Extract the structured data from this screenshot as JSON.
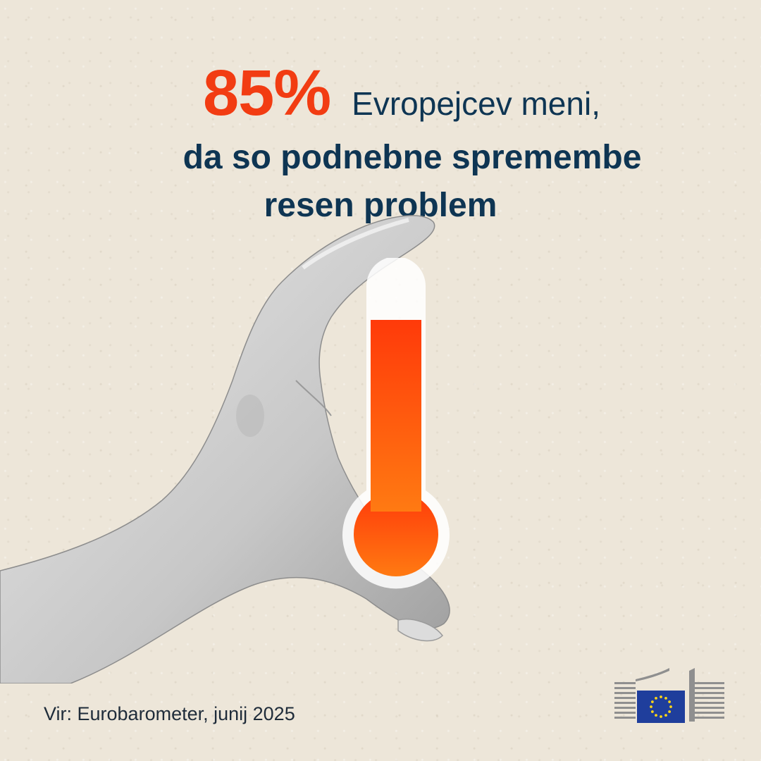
{
  "headline": {
    "stat": "85%",
    "line1": "Evropejcev meni,",
    "line2": "da so podnebne spremembe",
    "line3": "resen problem"
  },
  "thermometer": {
    "fill_level": 0.85,
    "fill_color_top": "#ff3a0a",
    "fill_color_bottom": "#ff7a12"
  },
  "source": "Vir: Eurobarometer, junij 2025",
  "colors": {
    "accent": "#f23c12",
    "text_dark": "#0e3553",
    "background": "#ede6d9",
    "eu_blue": "#1f3e9c",
    "eu_star": "#ffd617"
  },
  "logo": {
    "icon": "european-commission-logo"
  }
}
